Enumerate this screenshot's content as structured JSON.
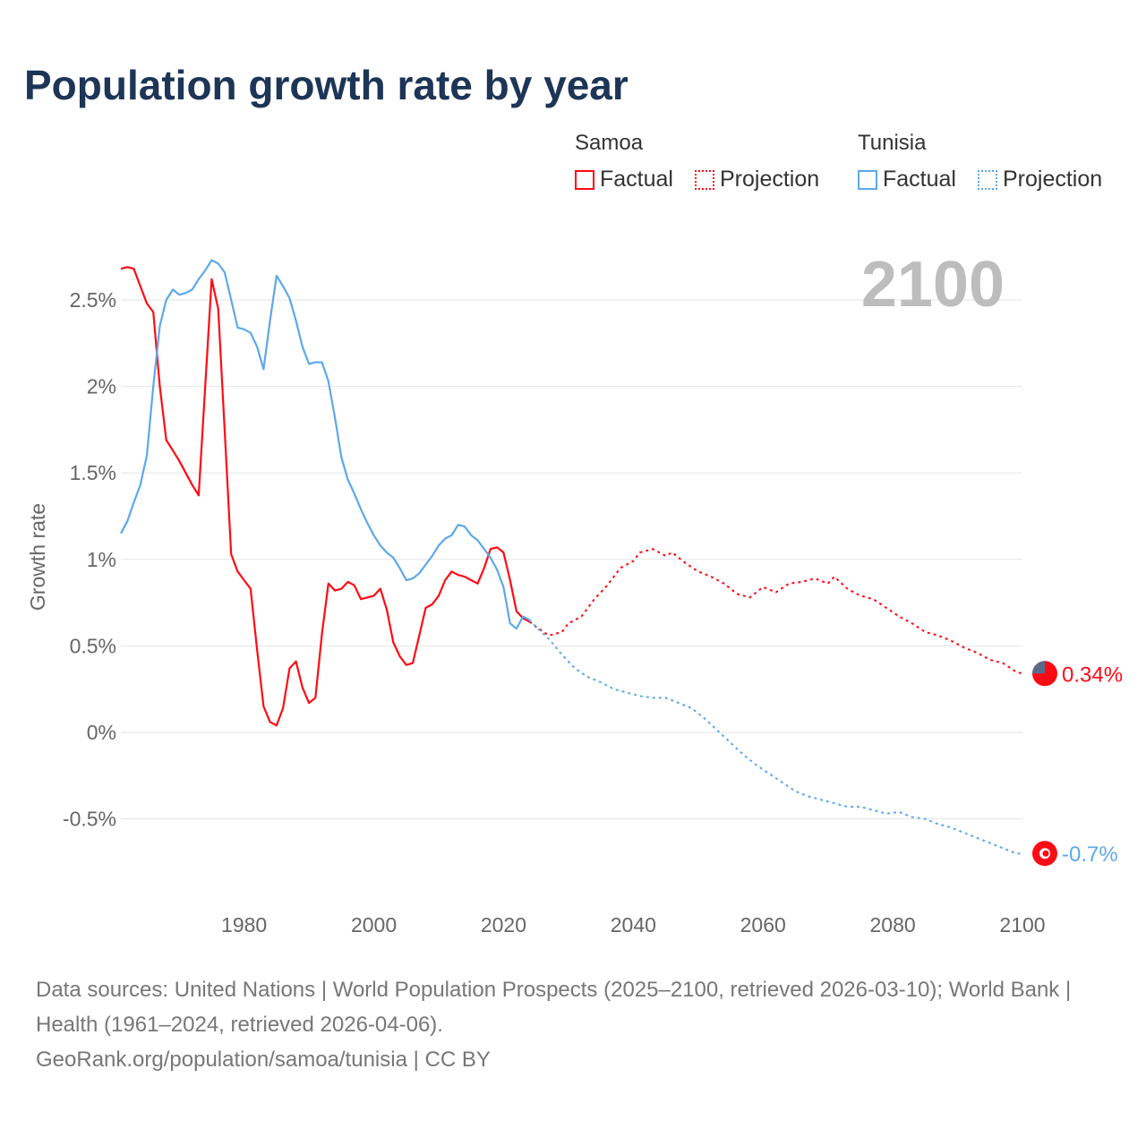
{
  "title": "Population growth rate by year",
  "legend": {
    "groups": [
      {
        "name": "Samoa",
        "factual": "Factual",
        "projection": "Projection",
        "color": "#ff0a14"
      },
      {
        "name": "Tunisia",
        "factual": "Factual",
        "projection": "Projection",
        "color": "#5ea8ea"
      }
    ]
  },
  "year_label": "2100",
  "footer": {
    "sources": "Data sources: United Nations | World Population Prospects (2025–2100, retrieved 2026-03-10); World Bank | Health (1961–2024, retrieved 2026-04-06).",
    "credit": "GeoRank.org/population/samoa/tunisia | CC BY"
  },
  "chart_data": {
    "type": "line",
    "title": "Population growth rate by year",
    "ylabel": "Growth rate",
    "xlabel": "",
    "xlim": [
      1961,
      2100
    ],
    "ylim": [
      -0.85,
      2.8
    ],
    "xticks": [
      1980,
      2000,
      2020,
      2040,
      2060,
      2080,
      2100
    ],
    "yticks": [
      {
        "v": -0.5,
        "label": "-0.5%"
      },
      {
        "v": 0,
        "label": "0%"
      },
      {
        "v": 0.5,
        "label": "0.5%"
      },
      {
        "v": 1,
        "label": "1%"
      },
      {
        "v": 1.5,
        "label": "1.5%"
      },
      {
        "v": 2,
        "label": "2%"
      },
      {
        "v": 2.5,
        "label": "2.5%"
      }
    ],
    "grid": true,
    "series": [
      {
        "name": "Samoa",
        "color": "#ff0a14",
        "end_label": "0.34%",
        "factual": {
          "start": 1961,
          "values": [
            2.68,
            2.69,
            2.68,
            2.58,
            2.48,
            2.43,
            2.0,
            1.69,
            1.63,
            1.57,
            1.5,
            1.43,
            1.37,
            2.0,
            2.62,
            2.45,
            1.75,
            1.03,
            0.93,
            0.88,
            0.83,
            0.48,
            0.15,
            0.06,
            0.04,
            0.14,
            0.37,
            0.41,
            0.26,
            0.17,
            0.2,
            0.57,
            0.86,
            0.82,
            0.83,
            0.87,
            0.85,
            0.77,
            0.78,
            0.79,
            0.83,
            0.71,
            0.52,
            0.44,
            0.39,
            0.4,
            0.56,
            0.72,
            0.74,
            0.79,
            0.88,
            0.93,
            0.91,
            0.9,
            0.88,
            0.86,
            0.95,
            1.06,
            1.07,
            1.04,
            0.88,
            0.7,
            0.66,
            0.64
          ]
        },
        "projection": [
          [
            2024,
            0.64
          ],
          [
            2025,
            0.61
          ],
          [
            2027,
            0.56
          ],
          [
            2029,
            0.58
          ],
          [
            2030,
            0.63
          ],
          [
            2032,
            0.67
          ],
          [
            2034,
            0.77
          ],
          [
            2036,
            0.85
          ],
          [
            2038,
            0.95
          ],
          [
            2040,
            0.99
          ],
          [
            2041,
            1.04
          ],
          [
            2043,
            1.06
          ],
          [
            2045,
            1.02
          ],
          [
            2046,
            1.04
          ],
          [
            2048,
            0.98
          ],
          [
            2050,
            0.93
          ],
          [
            2052,
            0.9
          ],
          [
            2054,
            0.86
          ],
          [
            2056,
            0.8
          ],
          [
            2058,
            0.78
          ],
          [
            2060,
            0.84
          ],
          [
            2062,
            0.81
          ],
          [
            2064,
            0.86
          ],
          [
            2066,
            0.87
          ],
          [
            2068,
            0.89
          ],
          [
            2070,
            0.86
          ],
          [
            2071,
            0.9
          ],
          [
            2073,
            0.83
          ],
          [
            2075,
            0.79
          ],
          [
            2077,
            0.77
          ],
          [
            2079,
            0.72
          ],
          [
            2081,
            0.67
          ],
          [
            2083,
            0.63
          ],
          [
            2085,
            0.58
          ],
          [
            2087,
            0.56
          ],
          [
            2089,
            0.53
          ],
          [
            2091,
            0.49
          ],
          [
            2093,
            0.46
          ],
          [
            2095,
            0.42
          ],
          [
            2097,
            0.4
          ],
          [
            2099,
            0.35
          ],
          [
            2100,
            0.34
          ]
        ]
      },
      {
        "name": "Tunisia",
        "color": "#5ea8ea",
        "end_label": "-0.7%",
        "factual": {
          "start": 1961,
          "values": [
            1.15,
            1.22,
            1.33,
            1.43,
            1.6,
            2.0,
            2.35,
            2.5,
            2.56,
            2.53,
            2.54,
            2.56,
            2.62,
            2.67,
            2.73,
            2.71,
            2.66,
            2.5,
            2.34,
            2.33,
            2.31,
            2.23,
            2.1,
            2.38,
            2.64,
            2.58,
            2.51,
            2.38,
            2.23,
            2.13,
            2.14,
            2.14,
            2.03,
            1.82,
            1.59,
            1.46,
            1.38,
            1.29,
            1.21,
            1.14,
            1.08,
            1.04,
            1.01,
            0.95,
            0.88,
            0.89,
            0.92,
            0.97,
            1.02,
            1.08,
            1.12,
            1.14,
            1.2,
            1.19,
            1.14,
            1.11,
            1.06,
            1.01,
            0.94,
            0.84,
            0.63,
            0.6,
            0.67,
            0.65
          ]
        },
        "projection": [
          [
            2024,
            0.65
          ],
          [
            2025,
            0.61
          ],
          [
            2027,
            0.54
          ],
          [
            2029,
            0.45
          ],
          [
            2031,
            0.37
          ],
          [
            2033,
            0.32
          ],
          [
            2035,
            0.29
          ],
          [
            2037,
            0.25
          ],
          [
            2039,
            0.23
          ],
          [
            2041,
            0.21
          ],
          [
            2043,
            0.2
          ],
          [
            2045,
            0.2
          ],
          [
            2047,
            0.17
          ],
          [
            2049,
            0.14
          ],
          [
            2051,
            0.08
          ],
          [
            2053,
            0.01
          ],
          [
            2055,
            -0.06
          ],
          [
            2057,
            -0.13
          ],
          [
            2059,
            -0.19
          ],
          [
            2061,
            -0.24
          ],
          [
            2063,
            -0.29
          ],
          [
            2065,
            -0.34
          ],
          [
            2067,
            -0.37
          ],
          [
            2069,
            -0.39
          ],
          [
            2071,
            -0.41
          ],
          [
            2073,
            -0.43
          ],
          [
            2075,
            -0.43
          ],
          [
            2077,
            -0.45
          ],
          [
            2079,
            -0.47
          ],
          [
            2081,
            -0.46
          ],
          [
            2083,
            -0.49
          ],
          [
            2085,
            -0.5
          ],
          [
            2087,
            -0.53
          ],
          [
            2089,
            -0.55
          ],
          [
            2091,
            -0.58
          ],
          [
            2093,
            -0.61
          ],
          [
            2095,
            -0.64
          ],
          [
            2097,
            -0.67
          ],
          [
            2099,
            -0.7
          ],
          [
            2100,
            -0.7
          ]
        ]
      }
    ]
  }
}
